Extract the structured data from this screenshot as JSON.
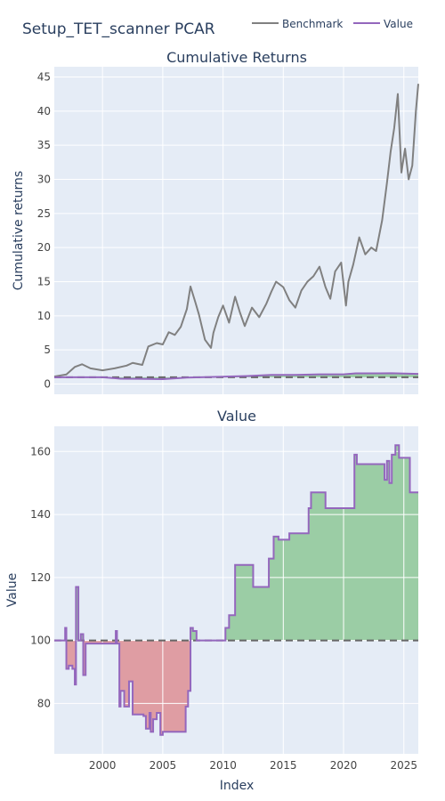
{
  "figure_title": "Setup_TET_scanner PCAR",
  "legend": [
    {
      "label": "Benchmark",
      "color": "#808080"
    },
    {
      "label": "Value",
      "color": "#9467bd"
    }
  ],
  "xlabel": "Index",
  "colors": {
    "plot_bg": "#e5ecf6",
    "grid": "#ffffff",
    "benchmark": "#808080",
    "value": "#9467bd",
    "baseline": "#666666",
    "gain_fill": "rgba(44,160,44,0.4)",
    "loss_fill": "rgba(214,39,40,0.4)"
  },
  "chart_data": [
    {
      "type": "line",
      "title": "Cumulative Returns",
      "xlabel": "",
      "ylabel": "Cumulative returns",
      "xlim": [
        1996.0,
        2026.2
      ],
      "ylim": [
        -1.5,
        46.5
      ],
      "xticks": [
        2000,
        2005,
        2010,
        2015,
        2020,
        2025
      ],
      "yticks": [
        0,
        5,
        10,
        15,
        20,
        25,
        30,
        35,
        40,
        45
      ],
      "baseline": 1,
      "grid": true,
      "series": [
        {
          "name": "Benchmark",
          "x": [
            1996.0,
            1997.0,
            1997.7,
            1998.3,
            1999.0,
            2000.0,
            2001.0,
            2002.0,
            2002.5,
            2003.3,
            2003.8,
            2004.5,
            2005.0,
            2005.5,
            2006.0,
            2006.5,
            2007.0,
            2007.3,
            2007.7,
            2008.0,
            2008.5,
            2009.0,
            2009.2,
            2009.6,
            2010.0,
            2010.5,
            2011.0,
            2011.4,
            2011.8,
            2012.4,
            2013.0,
            2013.6,
            2014.0,
            2014.4,
            2015.0,
            2015.5,
            2016.0,
            2016.5,
            2017.0,
            2017.5,
            2018.0,
            2018.5,
            2018.9,
            2019.3,
            2019.8,
            2020.2,
            2020.4,
            2020.8,
            2021.3,
            2021.8,
            2022.3,
            2022.7,
            2023.2,
            2023.6,
            2023.9,
            2024.2,
            2024.5,
            2024.8,
            2025.1,
            2025.4,
            2025.7,
            2026.0,
            2026.2
          ],
          "values": [
            1.1,
            1.4,
            2.5,
            2.9,
            2.3,
            2.0,
            2.3,
            2.7,
            3.1,
            2.8,
            5.5,
            6.0,
            5.8,
            7.6,
            7.2,
            8.4,
            11.0,
            14.3,
            12.0,
            10.2,
            6.5,
            5.3,
            7.5,
            9.8,
            11.5,
            9.0,
            12.8,
            10.5,
            8.5,
            11.2,
            9.8,
            11.8,
            13.5,
            15.0,
            14.2,
            12.3,
            11.2,
            13.7,
            15.0,
            15.8,
            17.2,
            14.2,
            12.5,
            16.5,
            17.8,
            11.5,
            15.0,
            17.5,
            21.5,
            19.0,
            20.0,
            19.5,
            24.0,
            29.5,
            34.0,
            37.5,
            42.5,
            31.0,
            34.5,
            30.0,
            32.0,
            40.0,
            44.0
          ]
        },
        {
          "name": "Value",
          "x": [
            1996.0,
            2000.0,
            2001.5,
            2003.0,
            2005.0,
            2007.0,
            2008.5,
            2010.0,
            2012.0,
            2014.0,
            2016.0,
            2018.0,
            2020.0,
            2021.0,
            2023.0,
            2024.0,
            2026.2
          ],
          "values": [
            1.0,
            0.99,
            0.79,
            0.77,
            0.71,
            0.95,
            1.01,
            1.08,
            1.17,
            1.33,
            1.34,
            1.42,
            1.42,
            1.56,
            1.56,
            1.58,
            1.48
          ]
        }
      ]
    },
    {
      "type": "area",
      "title": "Value",
      "xlabel": "Index",
      "ylabel": "Value",
      "xlim": [
        1996.0,
        2026.2
      ],
      "ylim": [
        64,
        168
      ],
      "xticks": [
        2000,
        2005,
        2010,
        2015,
        2020,
        2025
      ],
      "yticks": [
        80,
        100,
        120,
        140,
        160
      ],
      "baseline": 100,
      "grid": true,
      "series": [
        {
          "name": "Value",
          "x": [
            1996.0,
            1996.8,
            1996.9,
            1997.0,
            1997.2,
            1997.5,
            1997.7,
            1997.8,
            1998.0,
            1998.2,
            1998.4,
            1998.6,
            1999.0,
            2001.0,
            2001.1,
            2001.2,
            2001.4,
            2001.5,
            2001.8,
            2002.0,
            2002.2,
            2002.5,
            2002.8,
            2003.2,
            2003.4,
            2003.6,
            2003.9,
            2004.0,
            2004.2,
            2004.5,
            2004.8,
            2005.0,
            2005.5,
            2006.0,
            2006.5,
            2006.9,
            2007.1,
            2007.3,
            2007.5,
            2007.8,
            2009.5,
            2009.8,
            2010.2,
            2010.5,
            2010.7,
            2011.0,
            2012.5,
            2013.5,
            2013.8,
            2014.2,
            2014.6,
            2015.5,
            2016.0,
            2016.5,
            2016.9,
            2017.1,
            2017.3,
            2018.5,
            2019.5,
            2020.7,
            2020.9,
            2021.1,
            2022.5,
            2023.1,
            2023.4,
            2023.6,
            2023.8,
            2024.0,
            2024.3,
            2024.6,
            2024.9,
            2025.5,
            2026.2
          ],
          "values": [
            100,
            100,
            104,
            91,
            92,
            91,
            86,
            117,
            100,
            102,
            89,
            99,
            99,
            99,
            103,
            99,
            79,
            84,
            79,
            79,
            87,
            76.5,
            76.5,
            76.5,
            76,
            72,
            77,
            71,
            75,
            77,
            70,
            71,
            71,
            71,
            71,
            79,
            84,
            104,
            103,
            100,
            100,
            100,
            104,
            108,
            108,
            124,
            117,
            117,
            126,
            133,
            132,
            134,
            134,
            134,
            134,
            142,
            147,
            142,
            142,
            142,
            159,
            156,
            156,
            156,
            151,
            157,
            150,
            159,
            162,
            158,
            158,
            147,
            147
          ]
        }
      ]
    }
  ]
}
